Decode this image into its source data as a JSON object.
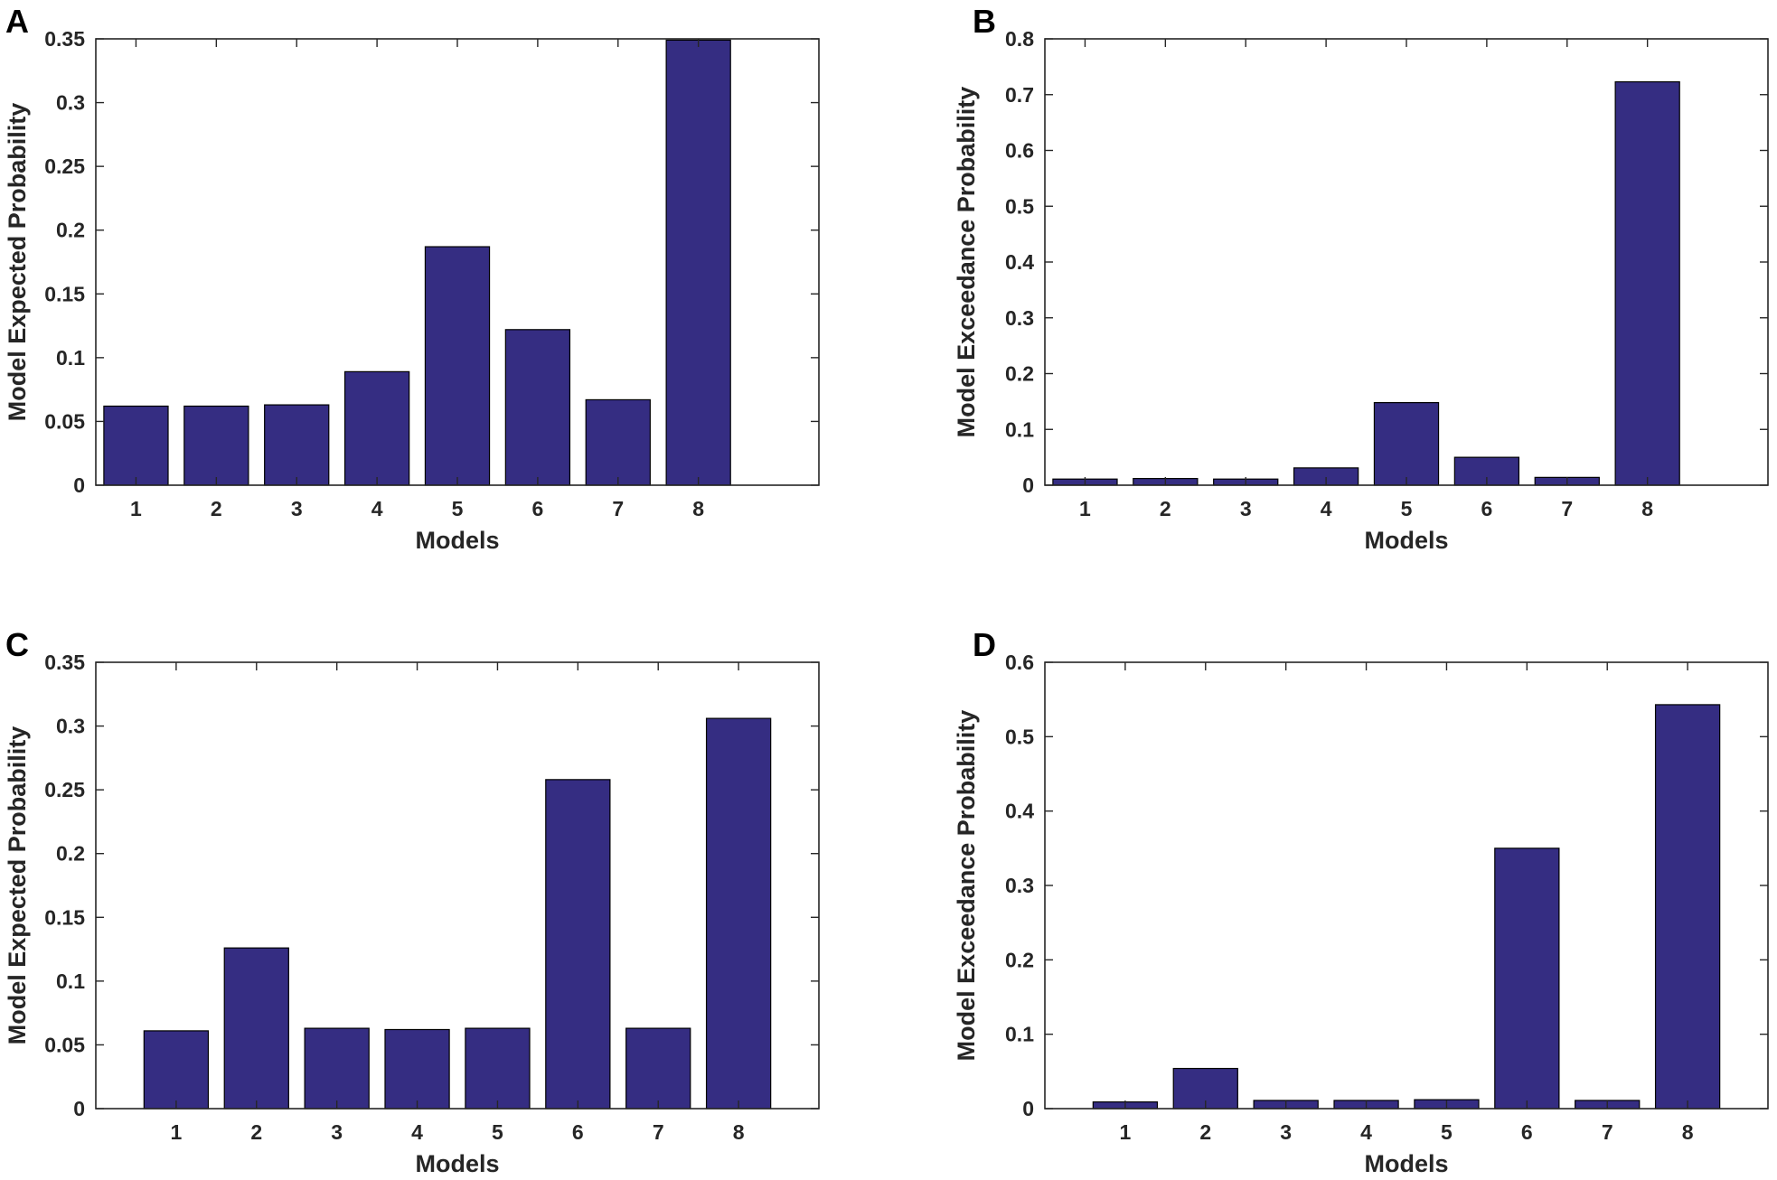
{
  "colors": {
    "bar": "#352d82",
    "axis": "#262626",
    "background": "#ffffff"
  },
  "chart_data": [
    {
      "panel": "A",
      "type": "bar",
      "categories": [
        "1",
        "2",
        "3",
        "4",
        "5",
        "6",
        "7",
        "8"
      ],
      "values": [
        0.062,
        0.062,
        0.063,
        0.089,
        0.187,
        0.122,
        0.067,
        0.349
      ],
      "xlabel": "Models",
      "ylabel": "Model Expected Probability",
      "ylim": [
        0,
        0.35
      ],
      "yticks": [
        "0",
        "0.05",
        "0.1",
        "0.15",
        "0.2",
        "0.25",
        "0.3",
        "0.35"
      ],
      "xlim": [
        0.5,
        9.5
      ],
      "grid": false
    },
    {
      "panel": "B",
      "type": "bar",
      "categories": [
        "1",
        "2",
        "3",
        "4",
        "5",
        "6",
        "7",
        "8"
      ],
      "values": [
        0.011,
        0.012,
        0.011,
        0.031,
        0.148,
        0.05,
        0.014,
        0.723
      ],
      "xlabel": "Models",
      "ylabel": "Model Exceedance Probability",
      "ylim": [
        0,
        0.8
      ],
      "yticks": [
        "0",
        "0.1",
        "0.2",
        "0.3",
        "0.4",
        "0.5",
        "0.6",
        "0.7",
        "0.8"
      ],
      "xlim": [
        0.5,
        9.5
      ],
      "grid": false
    },
    {
      "panel": "C",
      "type": "bar",
      "categories": [
        "1",
        "2",
        "3",
        "4",
        "5",
        "6",
        "7",
        "8"
      ],
      "values": [
        0.061,
        0.126,
        0.063,
        0.062,
        0.063,
        0.258,
        0.063,
        0.306
      ],
      "xlabel": "Models",
      "ylabel": "Model Expected Probability",
      "ylim": [
        0,
        0.35
      ],
      "yticks": [
        "0",
        "0.05",
        "0.1",
        "0.15",
        "0.2",
        "0.25",
        "0.3",
        "0.35"
      ],
      "xlim": [
        0,
        9
      ],
      "grid": false
    },
    {
      "panel": "D",
      "type": "bar",
      "categories": [
        "1",
        "2",
        "3",
        "4",
        "5",
        "6",
        "7",
        "8"
      ],
      "values": [
        0.009,
        0.054,
        0.011,
        0.011,
        0.012,
        0.35,
        0.011,
        0.543
      ],
      "xlabel": "Models",
      "ylabel": "Model Exceedance Probability",
      "ylim": [
        0,
        0.6
      ],
      "yticks": [
        "0",
        "0.1",
        "0.2",
        "0.3",
        "0.4",
        "0.5",
        "0.6"
      ],
      "xlim": [
        0,
        9
      ],
      "grid": false
    }
  ]
}
